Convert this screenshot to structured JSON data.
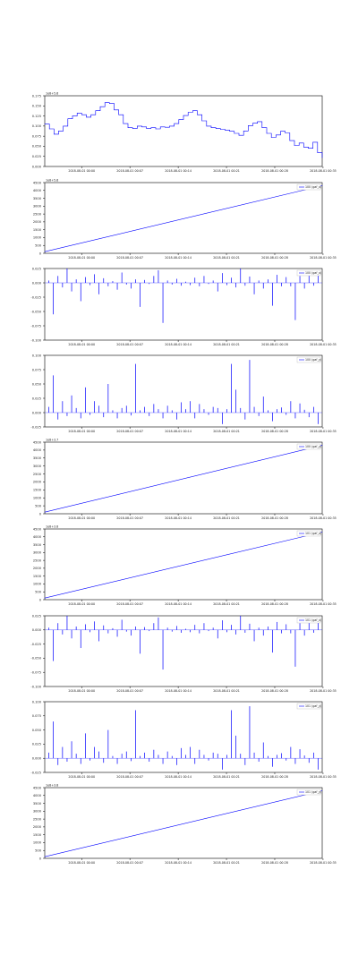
{
  "figure": {
    "colors": {
      "series": "#0000ff",
      "axes": "#000000",
      "background": "#ffffff"
    }
  },
  "chart_data": [
    {
      "type": "line",
      "title": "",
      "corner_text": "1e8+5.6",
      "legend": null,
      "x_ticks": [
        "2018-08-01 00:00",
        "2018-08-01 00:07",
        "2018-08-01 00:14",
        "2018-08-01 00:21",
        "2018-08-01 00:28",
        "2018-08-01 00:35"
      ],
      "y_ticks": [
        "0.000",
        "0.025",
        "0.050",
        "0.075",
        "0.100",
        "0.125",
        "0.150",
        "0.175"
      ],
      "ylim": [
        0,
        0.175
      ],
      "x": [
        0,
        1,
        2,
        3,
        4,
        5,
        6,
        7,
        8,
        9,
        10,
        11,
        12,
        13,
        14,
        15,
        16,
        17,
        18,
        19,
        20,
        21,
        22,
        23,
        24,
        25,
        26,
        27,
        28,
        29,
        30,
        31,
        32,
        33,
        34,
        35,
        36,
        37,
        38,
        39,
        40,
        41,
        42,
        43,
        44,
        45,
        46,
        47,
        48,
        49,
        50,
        51,
        52,
        53,
        54,
        55,
        56,
        57,
        58,
        59,
        60
      ],
      "y": [
        0.105,
        0.093,
        0.08,
        0.088,
        0.1,
        0.118,
        0.125,
        0.132,
        0.128,
        0.122,
        0.128,
        0.138,
        0.148,
        0.158,
        0.156,
        0.14,
        0.128,
        0.106,
        0.096,
        0.094,
        0.1,
        0.098,
        0.094,
        0.096,
        0.093,
        0.098,
        0.097,
        0.1,
        0.106,
        0.116,
        0.126,
        0.134,
        0.138,
        0.128,
        0.113,
        0.1,
        0.096,
        0.094,
        0.092,
        0.09,
        0.087,
        0.082,
        0.077,
        0.088,
        0.101,
        0.107,
        0.111,
        0.096,
        0.082,
        0.072,
        0.078,
        0.087,
        0.083,
        0.064,
        0.052,
        0.058,
        0.048,
        0.045,
        0.06,
        0.034,
        0.022
      ]
    },
    {
      "type": "line",
      "title": "",
      "corner_text": "1e8+5.6",
      "legend": "100 (gaf_x)",
      "x_ticks": [
        "2018-08-01 00:00",
        "2018-08-01 00:07",
        "2018-08-01 00:14",
        "2018-08-01 00:21",
        "2018-08-01 00:28",
        "2018-08-01 00:35"
      ],
      "y_ticks": [
        "0",
        "500",
        "1000",
        "1500",
        "2000",
        "2500",
        "3000",
        "3500",
        "4000",
        "4500"
      ],
      "ylim": [
        0,
        4500
      ],
      "x": [
        0,
        1
      ],
      "y": [
        100,
        4300
      ]
    },
    {
      "type": "bar",
      "title": "",
      "corner_text": "",
      "legend": "100 (gaf_x)",
      "x_ticks": [
        "2018-08-01 00:00",
        "2018-08-01 00:07",
        "2018-08-01 00:14",
        "2018-08-01 00:21",
        "2018-08-01 00:28",
        "2018-08-01 00:35"
      ],
      "y_ticks": [
        "-0.100",
        "-0.075",
        "-0.050",
        "-0.025",
        "0.000",
        "0.025"
      ],
      "ylim": [
        -0.1,
        0.025
      ],
      "values": [
        0.004,
        -0.055,
        0.012,
        -0.008,
        0.025,
        -0.015,
        0.006,
        -0.032,
        0.01,
        -0.004,
        0.015,
        -0.02,
        0.008,
        -0.006,
        0.003,
        -0.012,
        0.018,
        -0.003,
        -0.01,
        0.006,
        -0.042,
        0.005,
        -0.002,
        0.012,
        0.022,
        -0.07,
        0.004,
        -0.003,
        0.007,
        -0.005,
        0.002,
        -0.004,
        0.009,
        -0.006,
        0.012,
        -0.002,
        0.004,
        -0.015,
        0.017,
        -0.004,
        0.009,
        -0.008,
        0.025,
        -0.005,
        0.011,
        -0.02,
        0.004,
        -0.01,
        0.006,
        -0.04,
        0.014,
        -0.006,
        0.01,
        -0.006,
        -0.065,
        0.012,
        -0.01,
        0.018,
        -0.005,
        0.015
      ]
    },
    {
      "type": "bar",
      "title": "",
      "corner_text": "",
      "legend": "100 (gaf_y)",
      "x_ticks": [
        "2018-08-01 00:00",
        "2018-08-01 00:07",
        "2018-08-01 00:14",
        "2018-08-01 00:21",
        "2018-08-01 00:28",
        "2018-08-01 00:35"
      ],
      "y_ticks": [
        "-0.025",
        "0.000",
        "0.025",
        "0.050",
        "0.075",
        "0.100"
      ],
      "ylim": [
        -0.025,
        0.1
      ],
      "values": [
        0.01,
        0.065,
        -0.012,
        0.02,
        -0.006,
        0.03,
        0.008,
        -0.01,
        0.044,
        -0.004,
        0.02,
        0.012,
        -0.008,
        0.05,
        0.004,
        -0.01,
        0.008,
        0.012,
        -0.005,
        0.085,
        0.004,
        0.01,
        -0.006,
        0.015,
        0.006,
        -0.01,
        0.012,
        0.004,
        -0.012,
        0.018,
        0.006,
        0.02,
        -0.01,
        0.015,
        0.006,
        -0.004,
        0.01,
        0.008,
        -0.02,
        0.006,
        0.085,
        0.04,
        0.008,
        -0.012,
        0.092,
        0.01,
        -0.006,
        0.028,
        0.004,
        -0.015,
        0.006,
        0.009,
        -0.004,
        0.02,
        -0.01,
        0.016,
        0.005,
        -0.008,
        0.01,
        -0.02
      ]
    },
    {
      "type": "line",
      "title": "",
      "corner_text": "1e8+3.7",
      "legend": "100 (gaf_y)",
      "x_ticks": [
        "2018-08-01 00:00",
        "2018-08-01 00:07",
        "2018-08-01 00:14",
        "2018-08-01 00:21",
        "2018-08-01 00:28",
        "2018-08-01 00:35"
      ],
      "y_ticks": [
        "0",
        "500",
        "1000",
        "1500",
        "2000",
        "2500",
        "3000",
        "3500",
        "4000",
        "4500"
      ],
      "ylim": [
        0,
        4500
      ],
      "x": [
        0,
        1
      ],
      "y": [
        100,
        4300
      ]
    },
    {
      "type": "line",
      "title": "",
      "corner_text": "1e8+3.8",
      "legend": "101 (gaf_x)",
      "x_ticks": [
        "2018-08-01 00:00",
        "2018-08-01 00:07",
        "2018-08-01 00:14",
        "2018-08-01 00:21",
        "2018-08-01 00:28",
        "2018-08-01 00:35"
      ],
      "y_ticks": [
        "0",
        "500",
        "1000",
        "1500",
        "2000",
        "2500",
        "3000",
        "3500",
        "4000",
        "4500"
      ],
      "ylim": [
        0,
        4500
      ],
      "x": [
        0,
        1
      ],
      "y": [
        100,
        4300
      ]
    },
    {
      "type": "bar",
      "title": "",
      "corner_text": "",
      "legend": "101 (gaf_x)",
      "x_ticks": [
        "2018-08-01 00:00",
        "2018-08-01 00:07",
        "2018-08-01 00:14",
        "2018-08-01 00:21",
        "2018-08-01 00:28",
        "2018-08-01 00:35"
      ],
      "y_ticks": [
        "-0.100",
        "-0.075",
        "-0.050",
        "-0.025",
        "0.000",
        "0.025"
      ],
      "ylim": [
        -0.1,
        0.025
      ],
      "values": [
        0.004,
        -0.055,
        0.012,
        -0.008,
        0.025,
        -0.015,
        0.006,
        -0.032,
        0.01,
        -0.004,
        0.015,
        -0.02,
        0.008,
        -0.006,
        0.003,
        -0.012,
        0.018,
        -0.003,
        -0.01,
        0.006,
        -0.042,
        0.005,
        -0.002,
        0.012,
        0.022,
        -0.07,
        0.004,
        -0.003,
        0.007,
        -0.005,
        0.002,
        -0.004,
        0.009,
        -0.006,
        0.012,
        -0.002,
        0.004,
        -0.015,
        0.017,
        -0.004,
        0.009,
        -0.008,
        0.025,
        -0.005,
        0.011,
        -0.02,
        0.004,
        -0.01,
        0.006,
        -0.04,
        0.014,
        -0.006,
        0.01,
        -0.006,
        -0.065,
        0.012,
        -0.01,
        0.018,
        -0.005,
        0.015
      ]
    },
    {
      "type": "bar",
      "title": "",
      "corner_text": "",
      "legend": "101 (gaf_y)",
      "x_ticks": [
        "2018-08-01 00:00",
        "2018-08-01 00:07",
        "2018-08-01 00:14",
        "2018-08-01 00:21",
        "2018-08-01 00:28",
        "2018-08-01 00:35"
      ],
      "y_ticks": [
        "-0.025",
        "0.000",
        "0.025",
        "0.050",
        "0.075",
        "0.100"
      ],
      "ylim": [
        -0.025,
        0.1
      ],
      "values": [
        0.01,
        0.065,
        -0.012,
        0.02,
        -0.006,
        0.03,
        0.008,
        -0.01,
        0.044,
        -0.004,
        0.02,
        0.012,
        -0.008,
        0.05,
        0.004,
        -0.01,
        0.008,
        0.012,
        -0.005,
        0.085,
        0.004,
        0.01,
        -0.006,
        0.015,
        0.006,
        -0.01,
        0.012,
        0.004,
        -0.012,
        0.018,
        0.006,
        0.02,
        -0.01,
        0.015,
        0.006,
        -0.004,
        0.01,
        0.008,
        -0.02,
        0.006,
        0.085,
        0.04,
        0.008,
        -0.012,
        0.092,
        0.01,
        -0.006,
        0.028,
        0.004,
        -0.015,
        0.006,
        0.009,
        -0.004,
        0.02,
        -0.01,
        0.016,
        0.005,
        -0.008,
        0.01,
        -0.02
      ]
    },
    {
      "type": "line",
      "title": "",
      "corner_text": "1e8+3.8",
      "legend": "101 (gaf_y)",
      "x_ticks": [
        "2018-08-01 00:00",
        "2018-08-01 00:07",
        "2018-08-01 00:14",
        "2018-08-01 00:21",
        "2018-08-01 00:28",
        "2018-08-01 00:35"
      ],
      "y_ticks": [
        "0",
        "500",
        "1000",
        "1500",
        "2000",
        "2500",
        "3000",
        "3500",
        "4000",
        "4500"
      ],
      "ylim": [
        0,
        4500
      ],
      "x": [
        0,
        1
      ],
      "y": [
        100,
        4300
      ]
    }
  ]
}
